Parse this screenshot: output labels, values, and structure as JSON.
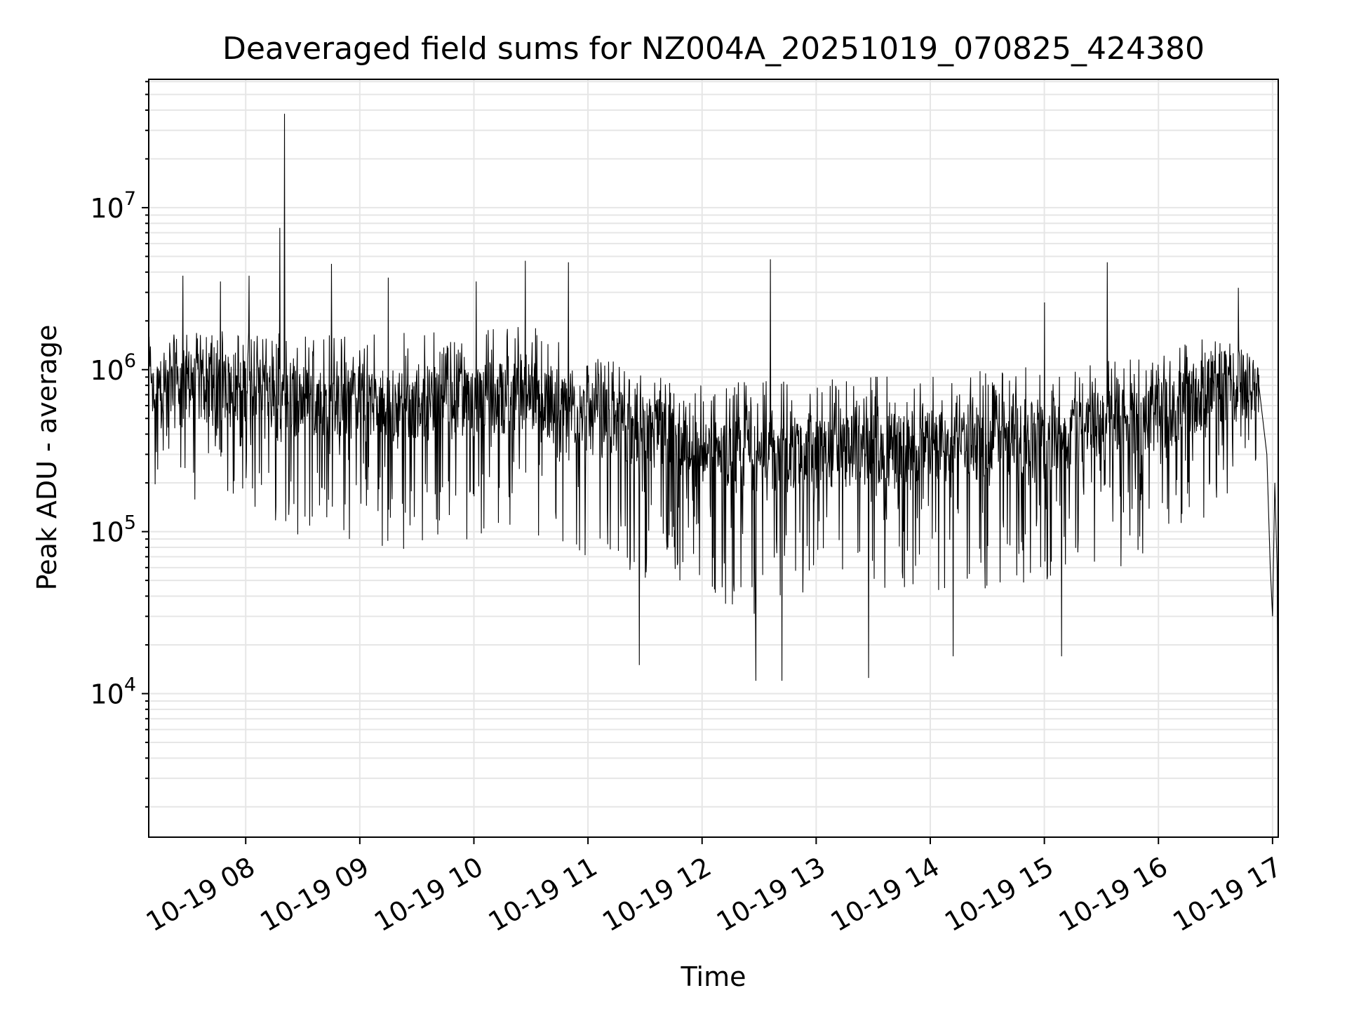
{
  "chart_data": {
    "type": "line",
    "title": "Deaveraged field sums for NZ004A_20251019_070825_424380",
    "xlabel": "Time",
    "ylabel": "Peak ADU - average",
    "yscale": "log",
    "ylim": [
      1300,
      62000000
    ],
    "xlim_hours": [
      7.15,
      17.05
    ],
    "grid": "major and minor",
    "x_ticks": [
      {
        "hour": 8,
        "label": "10-19 08"
      },
      {
        "hour": 9,
        "label": "10-19 09"
      },
      {
        "hour": 10,
        "label": "10-19 10"
      },
      {
        "hour": 11,
        "label": "10-19 11"
      },
      {
        "hour": 12,
        "label": "10-19 12"
      },
      {
        "hour": 13,
        "label": "10-19 13"
      },
      {
        "hour": 14,
        "label": "10-19 14"
      },
      {
        "hour": 15,
        "label": "10-19 15"
      },
      {
        "hour": 16,
        "label": "10-19 16"
      },
      {
        "hour": 17,
        "label": "10-19 17"
      }
    ],
    "y_ticks": [
      {
        "value": 10000,
        "base": "10",
        "exp": "4"
      },
      {
        "value": 100000,
        "base": "10",
        "exp": "5"
      },
      {
        "value": 1000000,
        "base": "10",
        "exp": "6"
      },
      {
        "value": 10000000,
        "base": "10",
        "exp": "7"
      }
    ],
    "series": [
      {
        "name": "deaveraged field sum",
        "color": "#000000",
        "points_note": "dense noisy series; values generated from envelope below",
        "envelope": [
          {
            "hour": 7.15,
            "median": 700000,
            "low": 150000,
            "high": 1600000
          },
          {
            "hour": 8.0,
            "median": 800000,
            "low": 150000,
            "high": 1800000
          },
          {
            "hour": 8.5,
            "median": 650000,
            "low": 90000,
            "high": 1700000
          },
          {
            "hour": 9.0,
            "median": 600000,
            "low": 70000,
            "high": 1700000
          },
          {
            "hour": 10.0,
            "median": 650000,
            "low": 90000,
            "high": 1800000
          },
          {
            "hour": 10.5,
            "median": 700000,
            "low": 90000,
            "high": 2000000
          },
          {
            "hour": 11.0,
            "median": 500000,
            "low": 60000,
            "high": 1200000
          },
          {
            "hour": 11.6,
            "median": 400000,
            "low": 50000,
            "high": 1000000
          },
          {
            "hour": 12.0,
            "median": 300000,
            "low": 40000,
            "high": 900000
          },
          {
            "hour": 12.5,
            "median": 280000,
            "low": 30000,
            "high": 850000
          },
          {
            "hour": 13.0,
            "median": 300000,
            "low": 40000,
            "high": 900000
          },
          {
            "hour": 14.0,
            "median": 330000,
            "low": 40000,
            "high": 950000
          },
          {
            "hour": 15.0,
            "median": 380000,
            "low": 45000,
            "high": 1050000
          },
          {
            "hour": 16.0,
            "median": 520000,
            "low": 70000,
            "high": 1300000
          },
          {
            "hour": 16.6,
            "median": 800000,
            "low": 150000,
            "high": 1800000
          },
          {
            "hour": 16.9,
            "median": 700000,
            "low": 300000,
            "high": 1000000
          }
        ],
        "spikes": [
          {
            "hour": 8.34,
            "value": 38000000
          },
          {
            "hour": 8.3,
            "value": 7500000
          },
          {
            "hour": 7.45,
            "value": 3800000
          },
          {
            "hour": 7.78,
            "value": 3500000
          },
          {
            "hour": 8.03,
            "value": 3800000
          },
          {
            "hour": 8.75,
            "value": 4500000
          },
          {
            "hour": 9.25,
            "value": 3700000
          },
          {
            "hour": 10.02,
            "value": 3500000
          },
          {
            "hour": 10.45,
            "value": 4700000
          },
          {
            "hour": 10.83,
            "value": 4600000
          },
          {
            "hour": 12.6,
            "value": 4800000
          },
          {
            "hour": 15.55,
            "value": 4600000
          },
          {
            "hour": 15.0,
            "value": 2600000
          },
          {
            "hour": 16.7,
            "value": 3200000
          }
        ],
        "dips": [
          {
            "hour": 12.47,
            "value": 12000
          },
          {
            "hour": 12.7,
            "value": 12000
          },
          {
            "hour": 13.46,
            "value": 12500
          },
          {
            "hour": 11.45,
            "value": 15000
          },
          {
            "hour": 14.2,
            "value": 17000
          },
          {
            "hour": 15.15,
            "value": 17000
          }
        ],
        "tail": [
          {
            "hour": 16.88,
            "value": 800000
          },
          {
            "hour": 16.95,
            "value": 300000
          },
          {
            "hour": 16.98,
            "value": 60000
          },
          {
            "hour": 17.0,
            "value": 30000
          },
          {
            "hour": 17.02,
            "value": 200000
          },
          {
            "hour": 17.04,
            "value": 60000
          },
          {
            "hour": 17.05,
            "value": 2000
          }
        ]
      }
    ]
  }
}
